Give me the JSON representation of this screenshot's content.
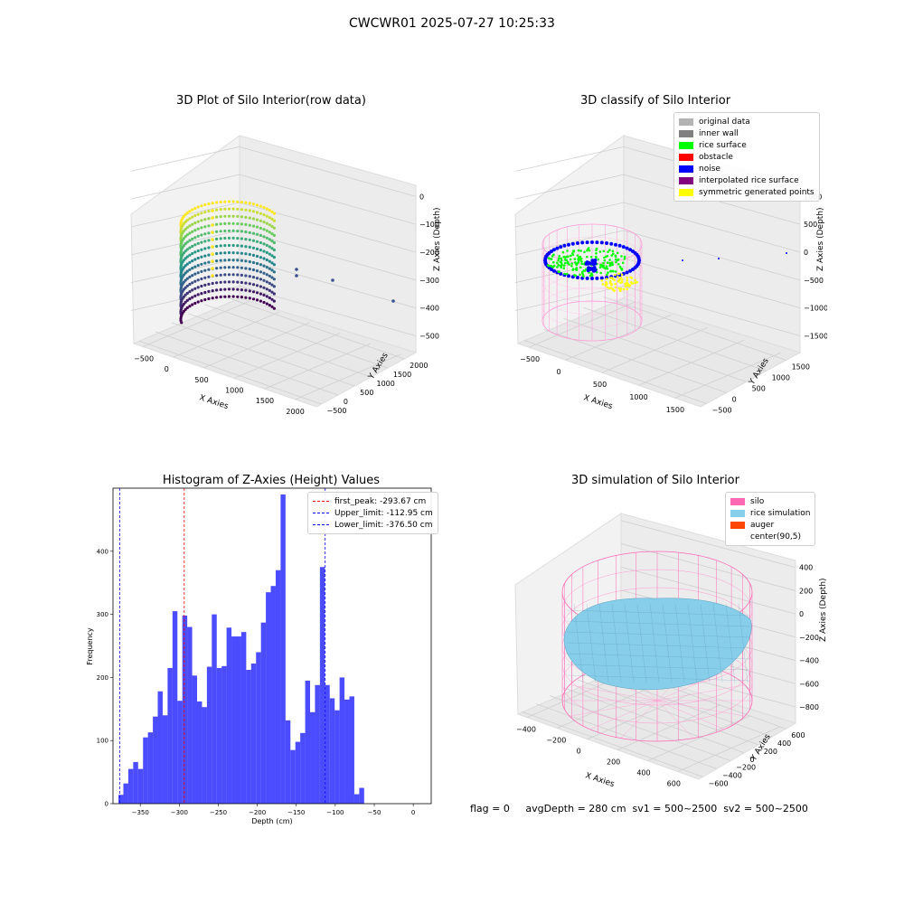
{
  "suptitle": "CWCWR01 2025-07-27 10:25:33",
  "status_line": "flag = 0     avgDepth = 280 cm  sv1 = 500~2500  sv2 = 500~2500",
  "chart_data": [
    {
      "type": "scatter",
      "projection": "3d",
      "title": "3D Plot of Silo Interior(row data)",
      "xlabel": "X Axies",
      "ylabel": "Y Axies",
      "zlabel": "Z Axies (Depth)",
      "xticks": [
        "−500",
        "0",
        "500",
        "1000",
        "1500",
        "2000"
      ],
      "yticks": [
        "−500",
        "0",
        "500",
        "1000",
        "1500",
        "2000"
      ],
      "zticks": [
        "0",
        "−100",
        "−200",
        "−300",
        "−400",
        "−500"
      ],
      "colormap": "viridis",
      "grid": true
    },
    {
      "type": "scatter",
      "projection": "3d",
      "title": "3D classify of Silo Interior",
      "xlabel": "X Axies",
      "ylabel": "Y Axies",
      "zlabel": "Z Axies (Depth)",
      "xticks": [
        "−500",
        "0",
        "500",
        "1000",
        "1500"
      ],
      "yticks": [
        "−500",
        "0",
        "500",
        "1000",
        "1500"
      ],
      "zticks": [
        "1000",
        "500",
        "0",
        "−500",
        "−1000",
        "−1500"
      ],
      "legend_placement": "top-right",
      "legend": [
        {
          "label": "original data",
          "color": "#b3b3b3"
        },
        {
          "label": "inner wall",
          "color": "#808080"
        },
        {
          "label": "rice surface",
          "color": "#00ff00"
        },
        {
          "label": "obstacle",
          "color": "#ff0000"
        },
        {
          "label": "noise",
          "color": "#0000ff"
        },
        {
          "label": "interpolated rice surface",
          "color": "#800080"
        },
        {
          "label": "symmetric generated points",
          "color": "#ffff00"
        }
      ],
      "grid": true
    },
    {
      "type": "bar",
      "title": "Histogram of Z-Axies (Height) Values",
      "xlabel": "Depth (cm)",
      "ylabel": "Frequency",
      "xlim": [
        -385,
        23
      ],
      "ylim": [
        0,
        500
      ],
      "xticks": [
        -350,
        -300,
        -250,
        -200,
        -150,
        -100,
        -50,
        0
      ],
      "yticks": [
        0,
        100,
        200,
        300,
        400
      ],
      "bin_width": 6.3,
      "bin_start": -378,
      "values": [
        14,
        32,
        55,
        66,
        55,
        105,
        113,
        138,
        178,
        140,
        215,
        305,
        163,
        298,
        280,
        203,
        162,
        153,
        217,
        300,
        215,
        218,
        279,
        265,
        265,
        272,
        212,
        222,
        240,
        287,
        335,
        345,
        370,
        490,
        132,
        85,
        98,
        112,
        195,
        145,
        188,
        375,
        188,
        167,
        148,
        200,
        165,
        170,
        15,
        25
      ],
      "bar_color": "#0000ff",
      "legend_placement": "top-right",
      "vlines": [
        {
          "label": "first_peak: -293.67 cm",
          "x": -293.67,
          "color": "#ff0000"
        },
        {
          "label": "Upper_limit: -112.95 cm",
          "x": -112.95,
          "color": "#0000ff"
        },
        {
          "label": "Lower_limit: -376.50 cm",
          "x": -376.5,
          "color": "#0000ff"
        }
      ]
    },
    {
      "type": "surface",
      "projection": "3d",
      "title": "3D simulation of Silo Interior",
      "xlabel": "X Axies",
      "ylabel": "Y Axies",
      "zlabel": "Z Axies (Depth)",
      "xticks": [
        "−400",
        "−200",
        "0",
        "200",
        "400",
        "600"
      ],
      "yticks": [
        "−600",
        "−400",
        "−200",
        "0",
        "200",
        "400",
        "600"
      ],
      "zticks": [
        "400",
        "200",
        "0",
        "−200",
        "−400",
        "−600",
        "−800"
      ],
      "legend_placement": "top-right",
      "legend": [
        {
          "label": "silo",
          "color": "#ff69b4"
        },
        {
          "label": "rice simulation",
          "color": "#87ceeb"
        },
        {
          "label": "auger",
          "color": "#ff4500"
        },
        {
          "label": "center(90,5)",
          "color": "#ffffff"
        }
      ],
      "grid": true
    }
  ]
}
